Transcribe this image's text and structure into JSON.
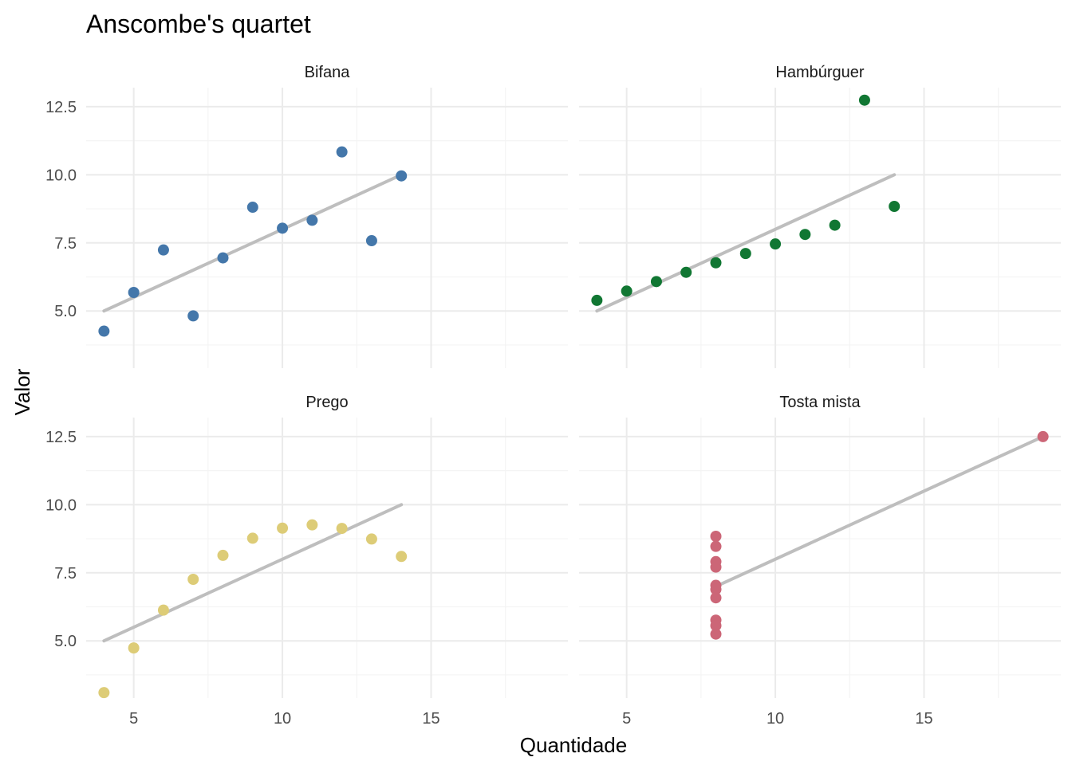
{
  "chart_data": {
    "type": "scatter",
    "title": "Anscombe's quartet",
    "xlabel": "Quantidade",
    "ylabel": "Valor",
    "xlim": [
      3.4,
      19.6
    ],
    "ylim": [
      2.9,
      13.2
    ],
    "x_ticks": [
      5,
      10,
      15
    ],
    "x_tick_labels": [
      "5",
      "10",
      "15"
    ],
    "y_ticks": [
      5,
      7.5,
      10,
      12.5
    ],
    "y_tick_labels": [
      "5.0",
      "7.5",
      "10.0",
      "12.5"
    ],
    "grid": true,
    "layout": "2x2 facets",
    "panels": [
      {
        "name": "Bifana",
        "color": "#4477AA",
        "x": [
          10,
          8,
          13,
          9,
          11,
          14,
          6,
          4,
          12,
          7,
          5
        ],
        "y": [
          8.04,
          6.95,
          7.58,
          8.81,
          8.33,
          9.96,
          7.24,
          4.26,
          10.84,
          4.82,
          5.68
        ],
        "fit_line": {
          "intercept": 3.0,
          "slope": 0.5,
          "x_range": [
            4,
            14
          ]
        }
      },
      {
        "name": "Hambúrguer",
        "color": "#117733",
        "x": [
          10,
          8,
          13,
          9,
          11,
          14,
          6,
          4,
          12,
          7,
          5
        ],
        "y": [
          7.46,
          6.77,
          12.74,
          7.11,
          7.81,
          8.84,
          6.08,
          5.39,
          8.15,
          6.42,
          5.73
        ],
        "fit_line": {
          "intercept": 3.0,
          "slope": 0.5,
          "x_range": [
            4,
            14
          ]
        }
      },
      {
        "name": "Prego",
        "color": "#DDCC77",
        "x": [
          10,
          8,
          13,
          9,
          11,
          14,
          6,
          4,
          12,
          7,
          5
        ],
        "y": [
          9.14,
          8.14,
          8.74,
          8.77,
          9.26,
          8.1,
          6.13,
          3.1,
          9.13,
          7.26,
          4.74
        ],
        "fit_line": {
          "intercept": 3.0,
          "slope": 0.5,
          "x_range": [
            4,
            14
          ]
        }
      },
      {
        "name": "Tosta mista",
        "color": "#CC6677",
        "x": [
          8,
          8,
          8,
          8,
          8,
          8,
          8,
          19,
          8,
          8,
          8
        ],
        "y": [
          6.58,
          5.76,
          7.71,
          8.84,
          8.47,
          7.04,
          5.25,
          12.5,
          5.56,
          7.91,
          6.89
        ],
        "fit_line": {
          "intercept": 3.0,
          "slope": 0.5,
          "x_range": [
            8,
            19
          ]
        }
      }
    ]
  }
}
